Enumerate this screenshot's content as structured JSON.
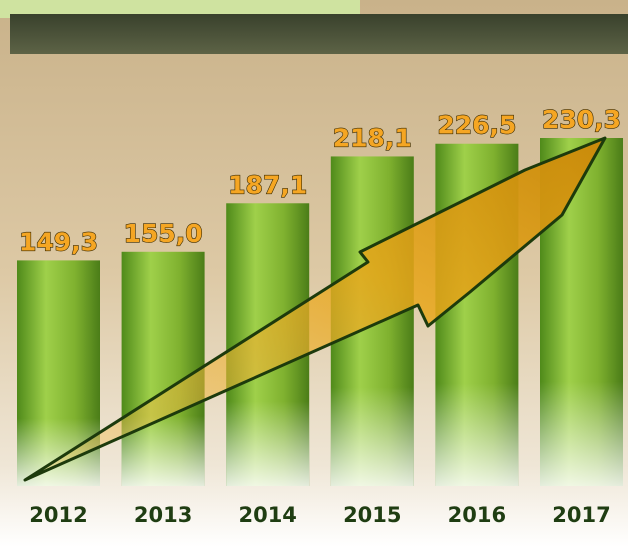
{
  "chart_data": {
    "type": "bar",
    "categories": [
      "2012",
      "2013",
      "2014",
      "2015",
      "2016",
      "2017"
    ],
    "values": [
      149.3,
      155.0,
      187.1,
      218.1,
      226.5,
      230.3
    ],
    "value_labels": [
      "149,3",
      "155,0",
      "187,1",
      "218,1",
      "226,5",
      "230,3"
    ],
    "color": "#7fb12f"
  }
}
